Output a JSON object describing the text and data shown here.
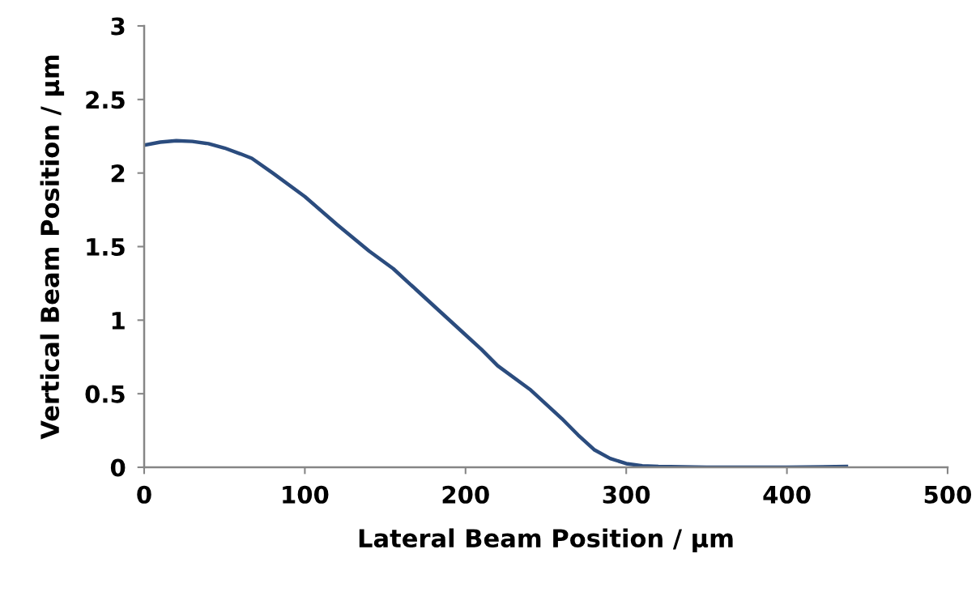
{
  "chart_data": {
    "type": "line",
    "xlabel": "Lateral Beam Position / µm",
    "ylabel": "Vertical Beam Position / µm",
    "xlim": [
      0,
      500
    ],
    "xticks": [
      0,
      100,
      200,
      300,
      400,
      500
    ],
    "ylim": [
      0,
      3
    ],
    "yticks": [
      0,
      0.5,
      1,
      1.5,
      2,
      2.5,
      3
    ],
    "grid": false,
    "legend": false,
    "marker": "none",
    "line_style": "solid",
    "series": [
      {
        "color": "#2b4c7e",
        "x": [
          0,
          10,
          20,
          30,
          40,
          50,
          60,
          67,
          80,
          100,
          120,
          140,
          155,
          170,
          185,
          200,
          210,
          220,
          240,
          260,
          270,
          280,
          290,
          300,
          310,
          320,
          350,
          400,
          437
        ],
        "values": [
          2.19,
          2.21,
          2.22,
          2.215,
          2.2,
          2.17,
          2.13,
          2.1,
          2.0,
          1.84,
          1.65,
          1.47,
          1.35,
          1.2,
          1.05,
          0.9,
          0.8,
          0.69,
          0.53,
          0.33,
          0.22,
          0.12,
          0.06,
          0.025,
          0.01,
          0.005,
          0.0,
          0.0,
          0.005
        ]
      }
    ]
  }
}
